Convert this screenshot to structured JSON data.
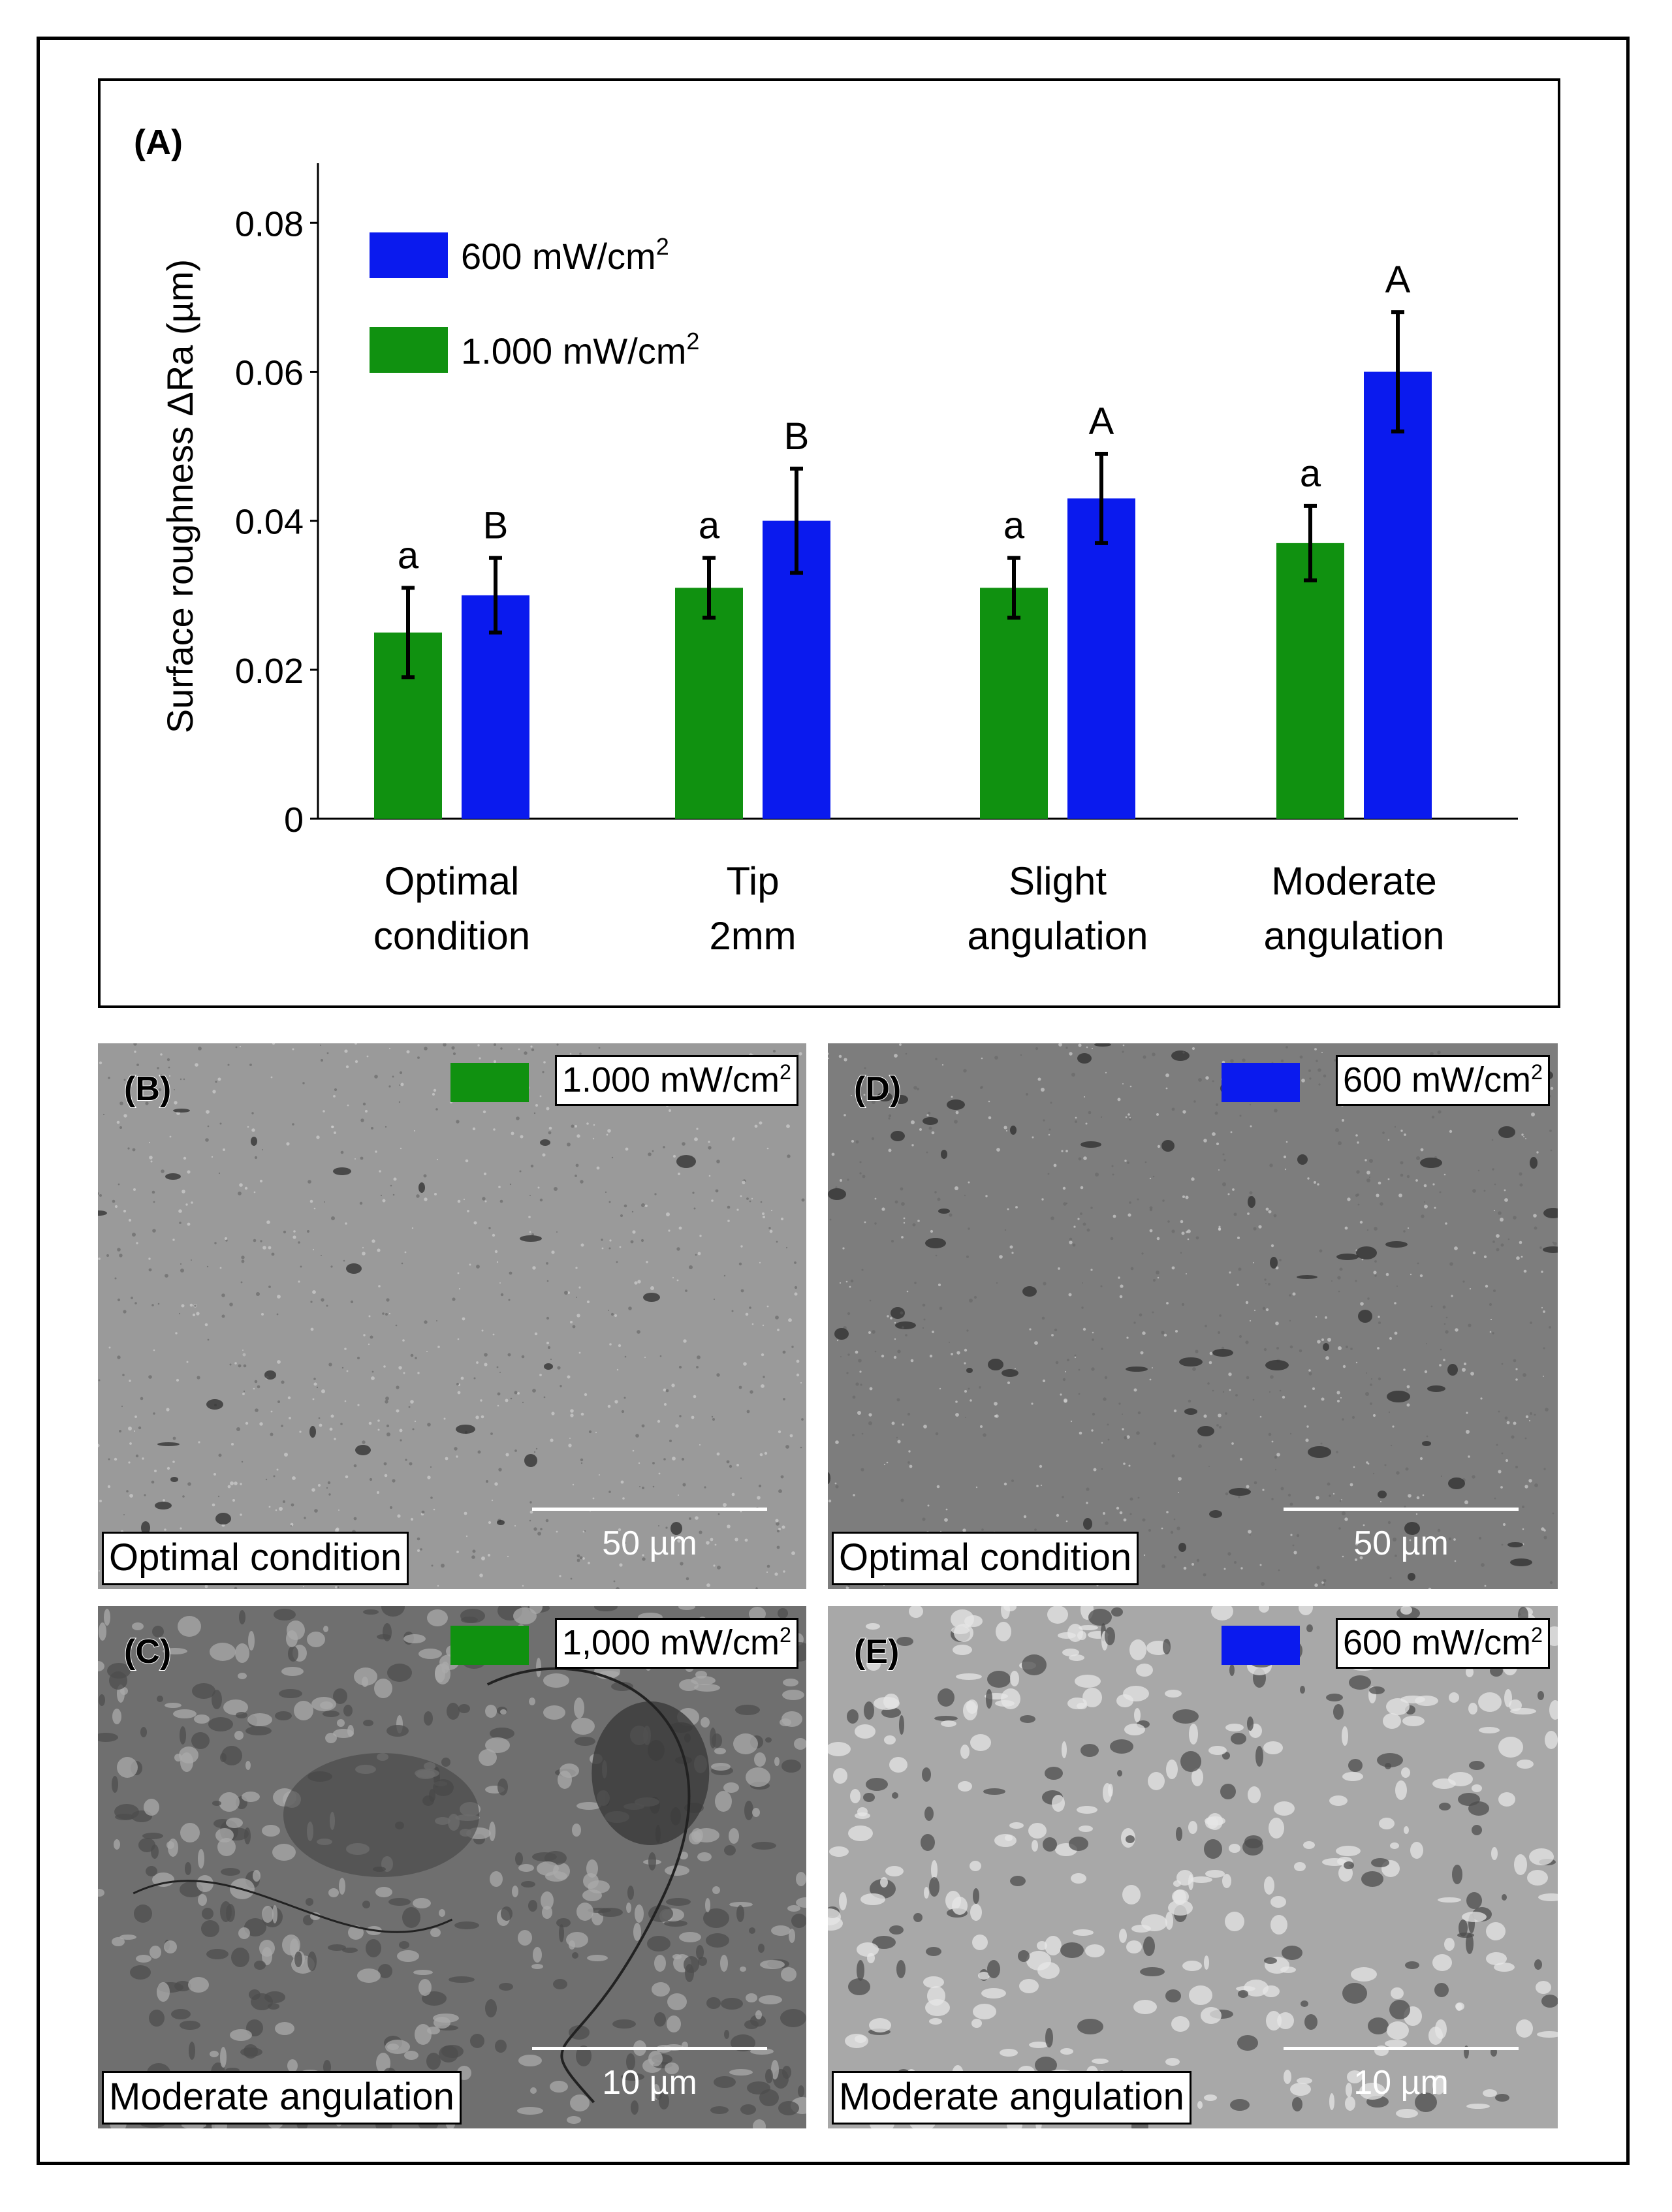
{
  "chart_data": {
    "type": "bar",
    "panel_label": "(A)",
    "title": "",
    "xlabel": "",
    "ylabel": "Surface roughness ΔRa (µm)",
    "ylim": [
      0,
      0.088
    ],
    "yticks": [
      0,
      0.02,
      0.04,
      0.06,
      0.08
    ],
    "ytick_labels": [
      "0",
      "0.02",
      "0.04",
      "0.06",
      "0.08"
    ],
    "categories": [
      [
        "Optimal",
        "condition"
      ],
      [
        "Tip",
        "2mm"
      ],
      [
        "Slight",
        "angulation"
      ],
      [
        "Moderate",
        "angulation"
      ]
    ],
    "series": [
      {
        "name": "1.000 mW/cm",
        "sup": "2",
        "color": "#109110",
        "values": [
          0.025,
          0.031,
          0.031,
          0.037
        ],
        "errors": [
          0.006,
          0.004,
          0.004,
          0.005
        ],
        "letters": [
          "a",
          "a",
          "a",
          "a"
        ]
      },
      {
        "name": "600 mW/cm",
        "sup": "2",
        "color": "#0a1aee",
        "values": [
          0.03,
          0.04,
          0.043,
          0.06
        ],
        "errors": [
          0.005,
          0.007,
          0.006,
          0.008
        ],
        "letters": [
          "B",
          "B",
          "A",
          "A"
        ]
      }
    ],
    "legend_position": "top-left",
    "legend_order": [
      1,
      0
    ],
    "grid": false
  },
  "sem_panels": [
    {
      "letter": "(B)",
      "intensity": "1.000 mW/cm",
      "sup": "2",
      "color": "#109110",
      "condition": "Optimal condition",
      "scale": "50 µm",
      "texture": "fine-light"
    },
    {
      "letter": "(D)",
      "intensity": "600 mW/cm",
      "sup": "2",
      "color": "#0a1aee",
      "condition": "Optimal condition",
      "scale": "50 µm",
      "texture": "fine-dark"
    },
    {
      "letter": "(C)",
      "intensity": "1,000 mW/cm",
      "sup": "2",
      "color": "#109110",
      "condition": "Moderate angulation",
      "scale": "10 µm",
      "texture": "coarse-dark"
    },
    {
      "letter": "(E)",
      "intensity": "600 mW/cm",
      "sup": "2",
      "color": "#0a1aee",
      "condition": "Moderate angulation",
      "scale": "10 µm",
      "texture": "coarse-light"
    }
  ]
}
